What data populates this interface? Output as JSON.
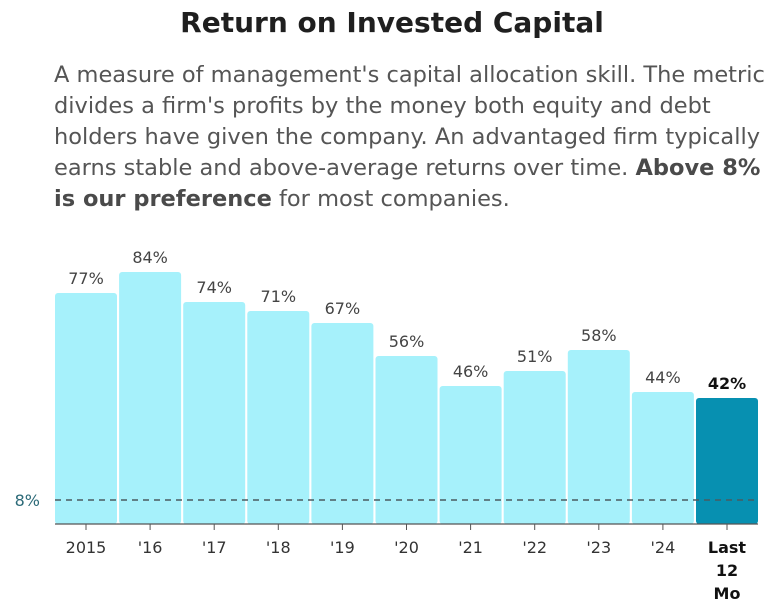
{
  "header": {
    "title": "Return on Invested Capital",
    "description_part1": "A measure of management's capital allocation skill. The metric divides a firm's profits by the money both equity and debt holders have given the company. An advantaged firm typically earns stable and above-average returns over time. ",
    "description_bold": "Above 8% is our preference",
    "description_part2": " for most companies."
  },
  "colors": {
    "bar": "#a6f1fb",
    "bar_highlight": "#0790b1",
    "reference_line": "#4a5a60",
    "axis": "#555555"
  },
  "chart_data": {
    "type": "bar",
    "title": "Return on Invested Capital",
    "categories": [
      "2015",
      "'16",
      "'17",
      "'18",
      "'19",
      "'20",
      "'21",
      "'22",
      "'23",
      "'24",
      "Last 12 Mo"
    ],
    "values": [
      77,
      84,
      74,
      71,
      67,
      56,
      46,
      51,
      58,
      44,
      42
    ],
    "value_labels": [
      "77%",
      "84%",
      "74%",
      "71%",
      "67%",
      "56%",
      "46%",
      "51%",
      "58%",
      "44%",
      "42%"
    ],
    "highlight_index": 10,
    "reference": {
      "value": 8,
      "label": "8%"
    },
    "ylim": [
      0,
      100
    ],
    "xlabel": "",
    "ylabel": "",
    "unit": "%"
  }
}
